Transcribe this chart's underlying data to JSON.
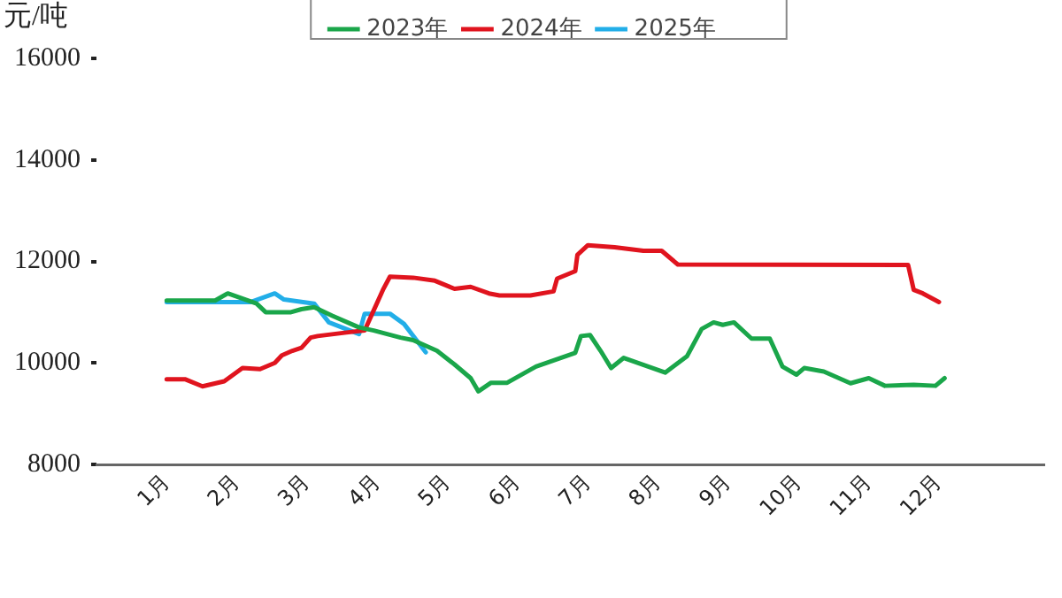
{
  "chart_data": {
    "type": "line",
    "ylabel": "元/吨",
    "legend": "top",
    "marker": "none",
    "line_style": "solid",
    "xlim": [
      0,
      13.5
    ],
    "xticks": [
      {
        "value": 1,
        "label": "1月"
      },
      {
        "value": 2,
        "label": "2月"
      },
      {
        "value": 3,
        "label": "3月"
      },
      {
        "value": 4,
        "label": "4月"
      },
      {
        "value": 5,
        "label": "5月"
      },
      {
        "value": 6,
        "label": "6月"
      },
      {
        "value": 7,
        "label": "7月"
      },
      {
        "value": 8,
        "label": "8月"
      },
      {
        "value": 9,
        "label": "9月"
      },
      {
        "value": 10,
        "label": "10月"
      },
      {
        "value": 11,
        "label": "11月"
      },
      {
        "value": 12,
        "label": "12月"
      }
    ],
    "ylim": [
      8000,
      16000
    ],
    "yticks": [
      8000,
      10000,
      12000,
      14000,
      16000
    ],
    "series": [
      {
        "name": "2023年",
        "color": "#1aa64a",
        "x": [
          1,
          1.69,
          1.87,
          2.28,
          2.41,
          2.77,
          2.92,
          3.1,
          3.36,
          3.74,
          3.95,
          4.33,
          4.51,
          4.85,
          5.1,
          5.33,
          5.44,
          5.62,
          5.85,
          6.26,
          6.82,
          6.9,
          7.03,
          7.18,
          7.33,
          7.51,
          8.1,
          8.41,
          8.62,
          8.79,
          8.92,
          9.08,
          9.33,
          9.59,
          9.77,
          9.97,
          10.08,
          10.36,
          10.74,
          11,
          11.23,
          11.64,
          11.95,
          12.08
        ],
        "values": [
          11230,
          11230,
          11370,
          11170,
          11000,
          11000,
          11060,
          11100,
          10930,
          10700,
          10640,
          10500,
          10450,
          10240,
          9970,
          9700,
          9440,
          9610,
          9610,
          9930,
          10200,
          10530,
          10550,
          10240,
          9900,
          10100,
          9810,
          10130,
          10670,
          10800,
          10750,
          10800,
          10480,
          10480,
          9930,
          9770,
          9900,
          9830,
          9600,
          9700,
          9550,
          9570,
          9550,
          9700
        ]
      },
      {
        "name": "2024年",
        "color": "#e0141e",
        "x": [
          1,
          1.26,
          1.51,
          1.82,
          2.08,
          2.33,
          2.54,
          2.64,
          2.79,
          2.92,
          3.05,
          3.15,
          3.56,
          3.82,
          3.95,
          4.08,
          4.18,
          4.51,
          4.82,
          5.1,
          5.33,
          5.59,
          5.74,
          6.18,
          6.51,
          6.56,
          6.82,
          6.85,
          7,
          7.38,
          7.79,
          8.05,
          8.28,
          11.56,
          11.64,
          11.77,
          12
        ],
        "values": [
          9680,
          9680,
          9540,
          9640,
          9900,
          9880,
          10000,
          10150,
          10240,
          10300,
          10500,
          10530,
          10600,
          10640,
          11040,
          11440,
          11700,
          11680,
          11620,
          11460,
          11500,
          11370,
          11330,
          11330,
          11410,
          11660,
          11810,
          12130,
          12320,
          12280,
          12210,
          12210,
          11940,
          11930,
          11440,
          11370,
          11200
        ]
      },
      {
        "name": "2025年",
        "color": "#22aee8",
        "x": [
          1,
          2.2,
          2.54,
          2.67,
          3.1,
          3.31,
          3.74,
          3.82,
          4.18,
          4.38,
          4.69
        ],
        "values": [
          11200,
          11200,
          11370,
          11250,
          11170,
          10800,
          10570,
          10970,
          10970,
          10770,
          10210
        ]
      }
    ]
  }
}
